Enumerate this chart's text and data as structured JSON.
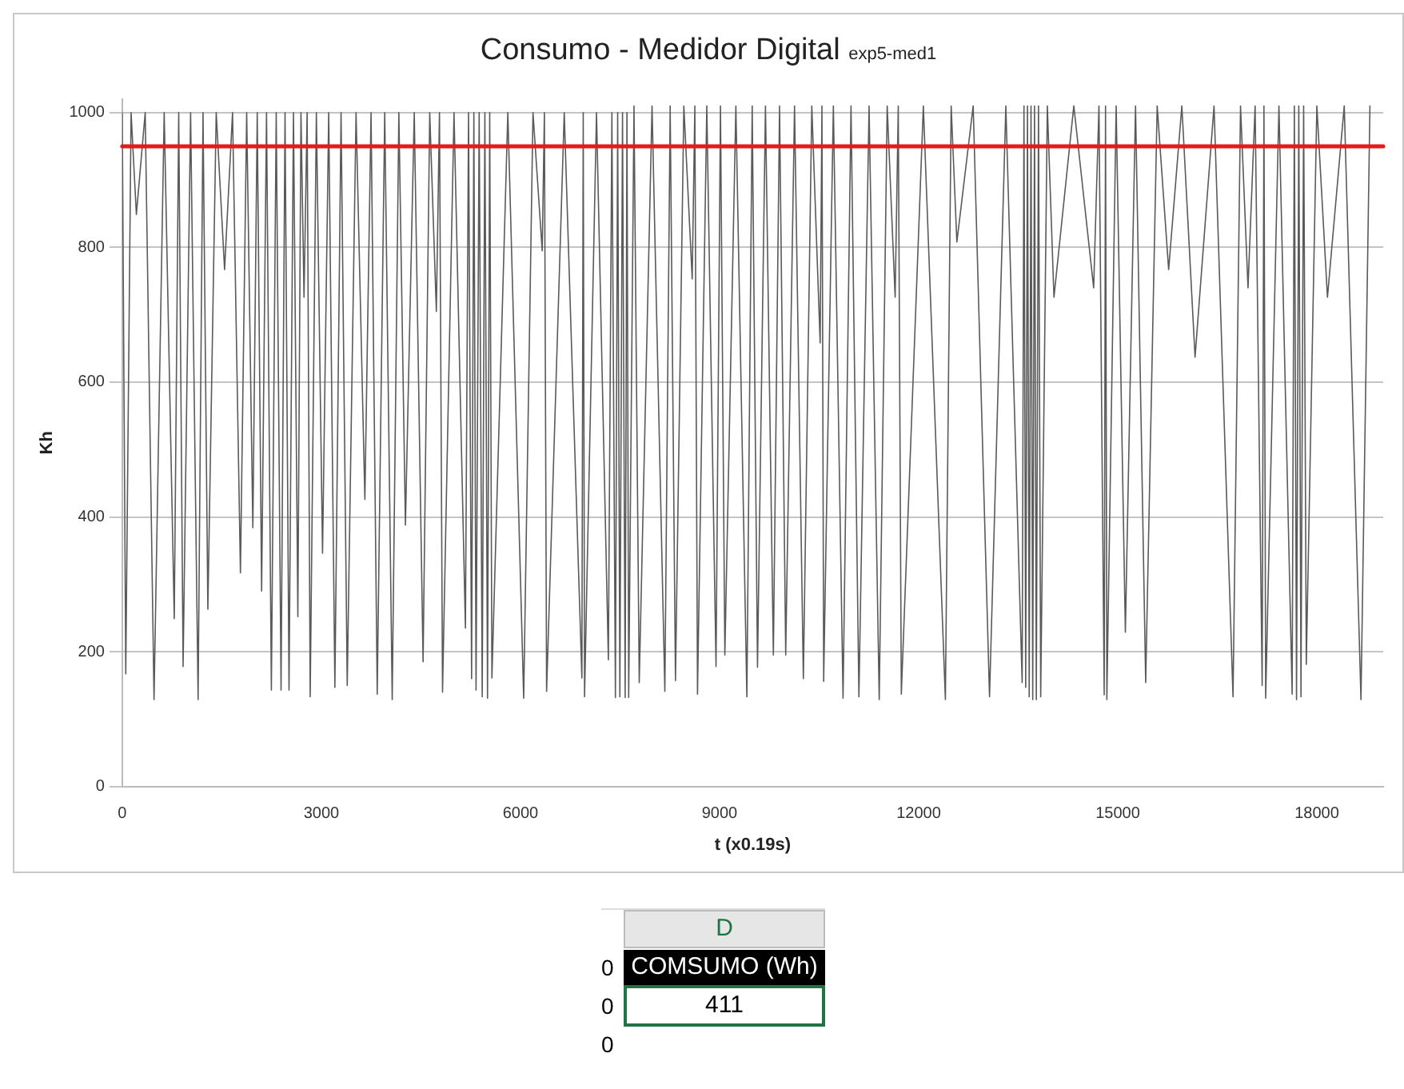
{
  "chart_data": {
    "type": "line",
    "title": "Consumo - Medidor Digital",
    "subtitle": "exp5-med1",
    "xlabel": "t (x0.19s)",
    "ylabel": "Kh",
    "x": [
      0,
      53,
      133,
      213,
      346,
      479,
      632,
      784,
      851,
      917,
      1030,
      1143,
      1217,
      1290,
      1416,
      1542,
      1662,
      1781,
      1875,
      1968,
      2034,
      2100,
      2174,
      2247,
      2320,
      2393,
      2453,
      2513,
      2580,
      2646,
      2693,
      2739,
      2786,
      2832,
      2925,
      3018,
      3111,
      3204,
      3297,
      3390,
      3523,
      3656,
      3749,
      3842,
      3955,
      4068,
      4168,
      4267,
      4400,
      4533,
      4633,
      4733,
      4780,
      4826,
      4999,
      5171,
      5218,
      5264,
      5298,
      5331,
      5378,
      5424,
      5464,
      5504,
      5537,
      5570,
      5810,
      6049,
      6189,
      6328,
      6361,
      6394,
      6660,
      6926,
      6946,
      6966,
      7146,
      7325,
      7378,
      7431,
      7465,
      7498,
      7538,
      7578,
      7605,
      7631,
      7711,
      7790,
      7983,
      8176,
      8256,
      8336,
      8462,
      8588,
      8628,
      8668,
      8808,
      8947,
      9014,
      9080,
      9246,
      9412,
      9492,
      9572,
      9692,
      9811,
      9904,
      9997,
      10130,
      10263,
      10390,
      10516,
      10543,
      10569,
      10715,
      10861,
      10981,
      11100,
      11253,
      11406,
      11526,
      11646,
      11693,
      11739,
      12071,
      12403,
      12490,
      12576,
      12822,
      13068,
      13314,
      13560,
      13587,
      13613,
      13640,
      13666,
      13693,
      13719,
      13746,
      13773,
      13806,
      13839,
      13939,
      14039,
      14338,
      14637,
      14717,
      14796,
      14816,
      14836,
      14976,
      15115,
      15268,
      15421,
      15594,
      15767,
      15966,
      16165,
      16451,
      16737,
      16850,
      16963,
      17070,
      17176,
      17203,
      17229,
      17429,
      17628,
      17661,
      17694,
      17728,
      17761,
      17801,
      17841,
      18000,
      18160,
      18413,
      18665,
      18800
    ],
    "series": [
      {
        "color": "#5a5a5a",
        "values": [
          1000,
          167,
          1000,
          849,
          1000,
          129,
          1000,
          249,
          1000,
          178,
          1000,
          129,
          1000,
          263,
          1000,
          767,
          1000,
          317,
          1000,
          384,
          1000,
          290,
          1000,
          143,
          1000,
          143,
          1000,
          143,
          1000,
          252,
          1000,
          726,
          1000,
          133,
          1000,
          346,
          1000,
          147,
          1000,
          150,
          1000,
          426,
          1000,
          137,
          1000,
          129,
          1000,
          388,
          1000,
          185,
          1000,
          705,
          1000,
          140,
          1000,
          235,
          1000,
          160,
          1000,
          143,
          1000,
          133,
          1000,
          131,
          1000,
          161,
          1000,
          131,
          1000,
          795,
          1000,
          141,
          1000,
          161,
          1000,
          133,
          1000,
          188,
          1000,
          132,
          1000,
          133,
          1000,
          132,
          1000,
          132,
          1010,
          154,
          1010,
          141,
          1010,
          157,
          1010,
          753,
          1010,
          137,
          1010,
          178,
          1010,
          195,
          1010,
          133,
          1010,
          177,
          1010,
          195,
          1010,
          195,
          1010,
          160,
          1010,
          658,
          1010,
          156,
          1010,
          131,
          1010,
          133,
          1010,
          129,
          1010,
          726,
          1010,
          137,
          1010,
          129,
          1010,
          808,
          1010,
          133,
          1010,
          154,
          1010,
          147,
          1010,
          133,
          1010,
          129,
          1010,
          129,
          1010,
          133,
          1010,
          726,
          1010,
          740,
          1010,
          136,
          1010,
          129,
          1010,
          229,
          1010,
          154,
          1010,
          767,
          1010,
          637,
          1010,
          133,
          1010,
          740,
          1010,
          150,
          1010,
          131,
          1010,
          137,
          1010,
          129,
          1010,
          133,
          1010,
          181,
          1010,
          726,
          1010,
          129,
          1010
        ]
      }
    ],
    "xlim": [
      0,
      19000
    ],
    "xticks": [
      0,
      3000,
      6000,
      9000,
      12000,
      15000,
      18000
    ],
    "ylim": [
      0,
      1020
    ],
    "yticks": [
      0,
      200,
      400,
      600,
      800,
      1000
    ],
    "grid": "y",
    "legend": false,
    "marker": "none",
    "line_style": "solid",
    "ref_lines": [
      {
        "axis": "y",
        "value": 950,
        "color": "#e41a1c"
      }
    ],
    "annotations": [
      "D",
      "0",
      "COMSUMO (Wh)",
      "0",
      "411",
      "0"
    ]
  }
}
